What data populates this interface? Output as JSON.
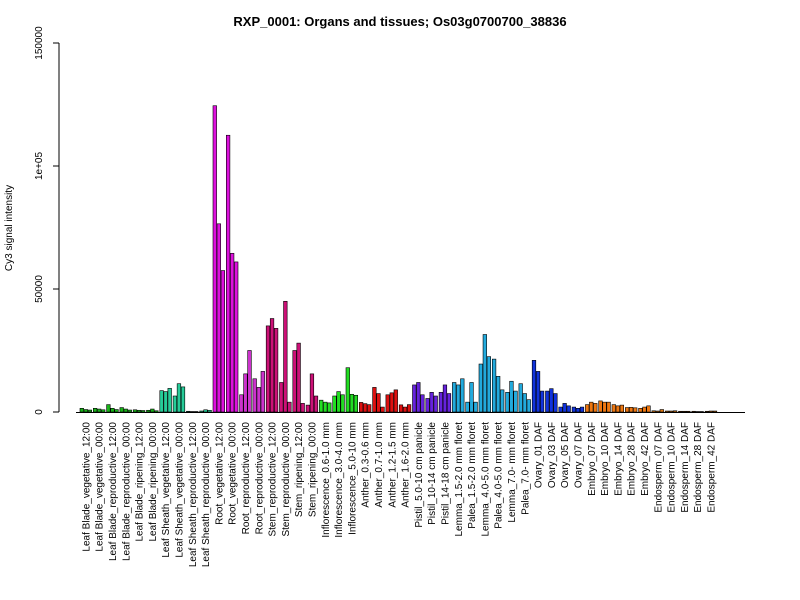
{
  "chart_data": {
    "type": "bar",
    "title": "RXP_0001: Organs and tissues; Os03g0700700_38836",
    "xlabel": "",
    "ylabel": "Cy3 signal intensity",
    "ylim": [
      0,
      150000
    ],
    "y_ticks": [
      0,
      50000,
      100000,
      150000
    ],
    "y_tick_labels": [
      "0",
      "50000",
      "1e+05",
      "150000"
    ],
    "grid": false,
    "categories": [
      "Leaf Blade_vegetative_12:00",
      "Leaf Blade_vegetative_00:00",
      "Leaf Blade_reproductive_12:00",
      "Leaf Blade_reproductive_00:00",
      "Leaf Blade_ripening_12:00",
      "Leaf Blade_ripening_00:00",
      "Leaf Sheath_vegetative_12:00",
      "Leaf Sheath_vegetative_00:00",
      "Leaf Sheath_reproductive_12:00",
      "Leaf Sheath_reproductive_00:00",
      "Root_vegetative_12:00",
      "Root_vegetative_00:00",
      "Root_reproductive_12:00",
      "Root_reproductive_00:00",
      "Stem_reproductive_12:00",
      "Stem_reproductive_00:00",
      "Stem_ripening_12:00",
      "Stem_ripening_00:00",
      "Inflorescence_0.6-1.0 mm",
      "Inflorescence_3.0-4.0 mm",
      "Inflorescence_5.0-10 mm",
      "Anther_0.3-0.6 mm",
      "Anther_0.7-1.0 mm",
      "Anther_1.2-1.5 mm",
      "Anther_1.6-2.0 mm",
      "Pistil_5.0-10 cm panicle",
      "Pistil_10-14 cm panicle",
      "Pistil_14-18 cm panicle",
      "Lemma_1.5-2.0 mm floret",
      "Palea_1.5-2.0 mm floret",
      "Lemma_4.0-5.0 mm floret",
      "Palea_4.0-5.0 mm floret",
      "Lemma_7.0- mm floret",
      "Palea_7.0- mm floret",
      "Ovary_01 DAF",
      "Ovary_03 DAF",
      "Ovary_05 DAF",
      "Ovary_07 DAF",
      "Embryo_07 DAF",
      "Embryo_10 DAF",
      "Embryo_14 DAF",
      "Embryo_28 DAF",
      "Embryo_42 DAF",
      "Endosperm_07 DAF",
      "Endosperm_10 DAF",
      "Endosperm_14 DAF",
      "Endosperm_28 DAF",
      "Endosperm_42 DAF"
    ],
    "group_colors": [
      "#19b319",
      "#19b319",
      "#19b319",
      "#19b319",
      "#19b319",
      "#19b319",
      "#26cc99",
      "#26cc99",
      "#26cc99",
      "#26cc99",
      "#dd11dd",
      "#dd11dd",
      "#cc33cc",
      "#cc33cc",
      "#cc1177",
      "#cc1177",
      "#cc1177",
      "#cc1177",
      "#22dd22",
      "#22dd22",
      "#22dd22",
      "#dd1111",
      "#dd1111",
      "#dd1111",
      "#dd1111",
      "#6622dd",
      "#6622dd",
      "#6622dd",
      "#22aadd",
      "#22aadd",
      "#22aadd",
      "#22aadd",
      "#22aadd",
      "#22aadd",
      "#1133dd",
      "#1133dd",
      "#1133dd",
      "#1133dd",
      "#ee7711",
      "#ee7711",
      "#ee7711",
      "#ee7711",
      "#ee7711",
      "#dd7711",
      "#dd7711",
      "#dd7711",
      "#dd7711",
      "#dd7711"
    ],
    "values": [
      [
        1500,
        1000,
        800
      ],
      [
        1500,
        1200,
        900
      ],
      [
        3000,
        1500,
        1000
      ],
      [
        1800,
        1200,
        800
      ],
      [
        900,
        700,
        600
      ],
      [
        700,
        1200,
        500
      ],
      [
        8700,
        8300,
        9600
      ],
      [
        6500,
        11500,
        10200
      ],
      [
        300,
        200,
        200
      ],
      [
        400,
        900,
        700
      ],
      [
        124500,
        76500,
        57500
      ],
      [
        112500,
        64500,
        61000
      ],
      [
        7000,
        15500,
        25000
      ],
      [
        13500,
        10000,
        16500
      ],
      [
        35000,
        38000,
        34000
      ],
      [
        12000,
        45000,
        4000
      ],
      [
        25000,
        28000,
        3500
      ],
      [
        2800,
        15500,
        6500
      ],
      [
        4800,
        4000,
        3700
      ],
      [
        6500,
        8300,
        7000
      ],
      [
        18000,
        7200,
        6800
      ],
      [
        3900,
        3400,
        3000
      ],
      [
        10000,
        7500,
        2000
      ],
      [
        7000,
        7800,
        9000
      ],
      [
        2900,
        2000,
        3000
      ],
      [
        11000,
        12000,
        7000
      ],
      [
        5500,
        8000,
        6500
      ],
      [
        8000,
        11000,
        7500
      ],
      [
        12000,
        11000,
        13500
      ],
      [
        4000,
        12000,
        4000
      ],
      [
        19500,
        31500,
        22500
      ],
      [
        21500,
        14500,
        9000
      ],
      [
        8000,
        12500,
        8500
      ],
      [
        11500,
        7500,
        5000
      ],
      [
        21000,
        16500,
        8500
      ],
      [
        8500,
        9500,
        7500
      ],
      [
        2000,
        3500,
        2500
      ],
      [
        2000,
        1500,
        2000
      ],
      [
        3000,
        4000,
        3500
      ],
      [
        4500,
        4000,
        4000
      ],
      [
        3000,
        2500,
        2800
      ],
      [
        1800,
        1900,
        1700
      ],
      [
        1500,
        2000,
        2500
      ],
      [
        500,
        400,
        1000
      ],
      [
        400,
        400,
        500
      ],
      [
        300,
        300,
        300
      ],
      [
        300,
        200,
        200
      ],
      [
        300,
        400,
        400
      ]
    ]
  }
}
